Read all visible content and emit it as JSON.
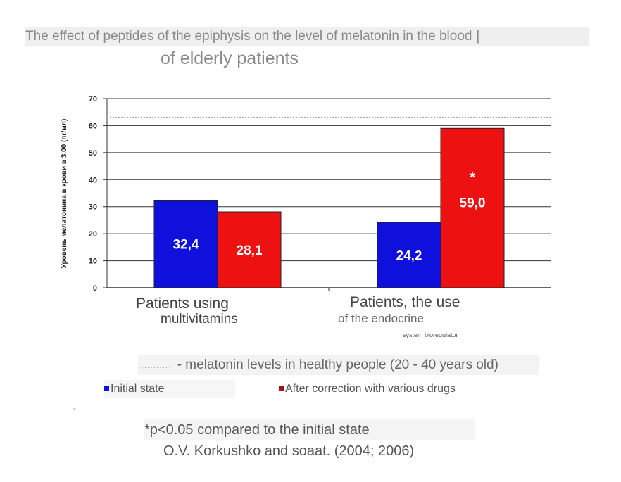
{
  "title_line1": "The effect of peptides of the epiphysis on the level of melatonin in the blood",
  "title_line1_end": "|",
  "title_line2": "of elderly patients",
  "chart_data": {
    "type": "bar",
    "categories": [
      "Patients using multivitamins",
      "Patients, the use of the endocrine system bioregulator"
    ],
    "category_lines": [
      [
        "Patients using",
        "multivitamins"
      ],
      [
        "Patients, the use",
        "of the endocrine",
        "system bioregulator"
      ]
    ],
    "series": [
      {
        "name": "Initial state",
        "values": [
          32.4,
          24.2
        ],
        "labels": [
          "32,4",
          "24,2"
        ],
        "color": "#1010dd"
      },
      {
        "name": "After correction with various drugs",
        "values": [
          28.1,
          59.0
        ],
        "labels": [
          "28,1",
          "59,0"
        ],
        "color": "#ee1111"
      }
    ],
    "ylabel": "Уровень мелатонина в крови в 3.00 (пг/мл)",
    "ylim": [
      0,
      70
    ],
    "yticks": [
      0,
      10,
      20,
      30,
      40,
      50,
      60,
      70
    ],
    "reference_line": {
      "value": 63,
      "style": "dotted",
      "color": "#9ab0b0"
    },
    "significance_marker": {
      "series": 1,
      "category": 1,
      "text": "*"
    },
    "grid": true,
    "legend_position": "bottom"
  },
  "reference_note": "- melatonin levels in healthy people (20 - 40 years old)",
  "reference_dots": "...........",
  "legend": {
    "initial": "Initial state",
    "after": "After correction with various drugs"
  },
  "footnote": "*p<0.05 compared to the initial state",
  "source": "O.V. Korkushko and soaat. (2004; 2006)",
  "misc_dash": "-"
}
